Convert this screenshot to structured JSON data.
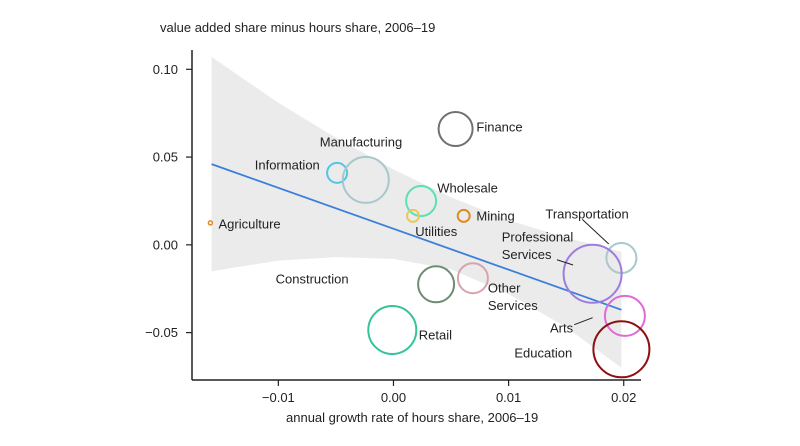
{
  "chart_data": {
    "type": "scatter",
    "ylabel": "value added share minus hours share, 2006–19",
    "xlabel": "annual growth rate of hours share, 2006–19",
    "xlim": [
      -0.0175,
      0.0215
    ],
    "ylim": [
      -0.077,
      0.111
    ],
    "xticks": [
      -0.01,
      0.0,
      0.01,
      0.02
    ],
    "xtick_labels": [
      "−0.01",
      "0.00",
      "0.01",
      "0.02"
    ],
    "yticks": [
      -0.05,
      0.0,
      0.05,
      0.1
    ],
    "ytick_labels": [
      "−0.05",
      "0.00",
      "0.05",
      "0.10"
    ],
    "fit_line": {
      "x": [
        -0.0158,
        0.0198
      ],
      "y": [
        0.046,
        -0.037
      ],
      "color": "#3b7fd9"
    },
    "confidence_band": {
      "x": [
        -0.0158,
        -0.01,
        -0.005,
        0.0,
        0.005,
        0.01,
        0.015,
        0.0198
      ],
      "upper": [
        0.107,
        0.081,
        0.061,
        0.043,
        0.027,
        0.014,
        0.004,
        -0.004
      ],
      "lower": [
        -0.015,
        -0.009,
        -0.007,
        -0.008,
        -0.014,
        -0.028,
        -0.047,
        -0.07
      ],
      "color": "#ebebeb"
    },
    "points": [
      {
        "label": "Agriculture",
        "x": -0.0159,
        "y": 0.0125,
        "size": 2,
        "color": "#e08a24"
      },
      {
        "label": "Information",
        "x": -0.0049,
        "y": 0.041,
        "size": 10,
        "color": "#4fc6e6"
      },
      {
        "label": "Manufacturing",
        "x": -0.0024,
        "y": 0.037,
        "size": 23,
        "color": "#a9c8cc"
      },
      {
        "label": "Finance",
        "x": 0.0054,
        "y": 0.066,
        "size": 17,
        "color": "#707070"
      },
      {
        "label": "Wholesale",
        "x": 0.0024,
        "y": 0.025,
        "size": 15,
        "color": "#5ee0b6"
      },
      {
        "label": "Utilities",
        "x": 0.0017,
        "y": 0.0165,
        "size": 6,
        "color": "#e7c95a"
      },
      {
        "label": "Mining",
        "x": 0.0061,
        "y": 0.0165,
        "size": 6,
        "color": "#e08a24"
      },
      {
        "label": "Transportation",
        "x": 0.0198,
        "y": -0.0075,
        "size": 15,
        "color": "#a9c8cc"
      },
      {
        "label": "Professional Services",
        "x": 0.0173,
        "y": -0.0165,
        "size": 29,
        "color": "#9d7ce0"
      },
      {
        "label": "Construction",
        "x": 0.0037,
        "y": -0.0225,
        "size": 18,
        "color": "#6f8c73"
      },
      {
        "label": "Other Services",
        "x": 0.0069,
        "y": -0.019,
        "size": 15,
        "color": "#d9a3ae"
      },
      {
        "label": "Arts",
        "x": 0.0201,
        "y": -0.0405,
        "size": 20,
        "color": "#e06ad6"
      },
      {
        "label": "Retail",
        "x": -0.0001,
        "y": -0.0485,
        "size": 24,
        "color": "#33c49a"
      },
      {
        "label": "Education",
        "x": 0.0198,
        "y": -0.0595,
        "size": 28,
        "color": "#8c1010"
      }
    ],
    "annotations": [
      {
        "text": "Agriculture",
        "x": -0.0152,
        "y": 0.012,
        "anchor": "start"
      },
      {
        "text": "Information",
        "x": -0.0064,
        "y": 0.0455,
        "anchor": "end"
      },
      {
        "text": "Manufacturing",
        "x": -0.0064,
        "y": 0.0585,
        "anchor": "start"
      },
      {
        "text": "Finance",
        "x": 0.0072,
        "y": 0.067,
        "anchor": "start"
      },
      {
        "text": "Wholesale",
        "x": 0.0038,
        "y": 0.0325,
        "anchor": "start"
      },
      {
        "text": "Utilities",
        "x": 0.0019,
        "y": 0.0075,
        "anchor": "start"
      },
      {
        "text": "Mining",
        "x": 0.0072,
        "y": 0.0165,
        "anchor": "start"
      },
      {
        "text": "Transportation",
        "x": 0.0132,
        "y": 0.0175,
        "anchor": "start"
      },
      {
        "text": "Professional",
        "x": 0.0094,
        "y": 0.0045,
        "anchor": "start"
      },
      {
        "text": "Services",
        "x": 0.0094,
        "y": -0.0055,
        "anchor": "start"
      },
      {
        "text": "Construction",
        "x": -0.0039,
        "y": -0.0195,
        "anchor": "end"
      },
      {
        "text": "Other",
        "x": 0.0082,
        "y": -0.0245,
        "anchor": "start"
      },
      {
        "text": "Services",
        "x": 0.0082,
        "y": -0.0345,
        "anchor": "start"
      },
      {
        "text": "Arts",
        "x": 0.0136,
        "y": -0.0475,
        "anchor": "start"
      },
      {
        "text": "Retail",
        "x": 0.0022,
        "y": -0.0515,
        "anchor": "start"
      },
      {
        "text": "Education",
        "x": 0.0105,
        "y": -0.0615,
        "anchor": "start"
      }
    ],
    "leaders": [
      {
        "from": [
          0.0142,
          -0.0085
        ],
        "to": [
          0.0156,
          -0.0115
        ]
      },
      {
        "from": [
          0.0164,
          0.0145
        ],
        "to": [
          0.0187,
          0.0005
        ]
      },
      {
        "from": [
          0.0157,
          -0.0455
        ],
        "to": [
          0.0173,
          -0.0415
        ]
      }
    ]
  }
}
